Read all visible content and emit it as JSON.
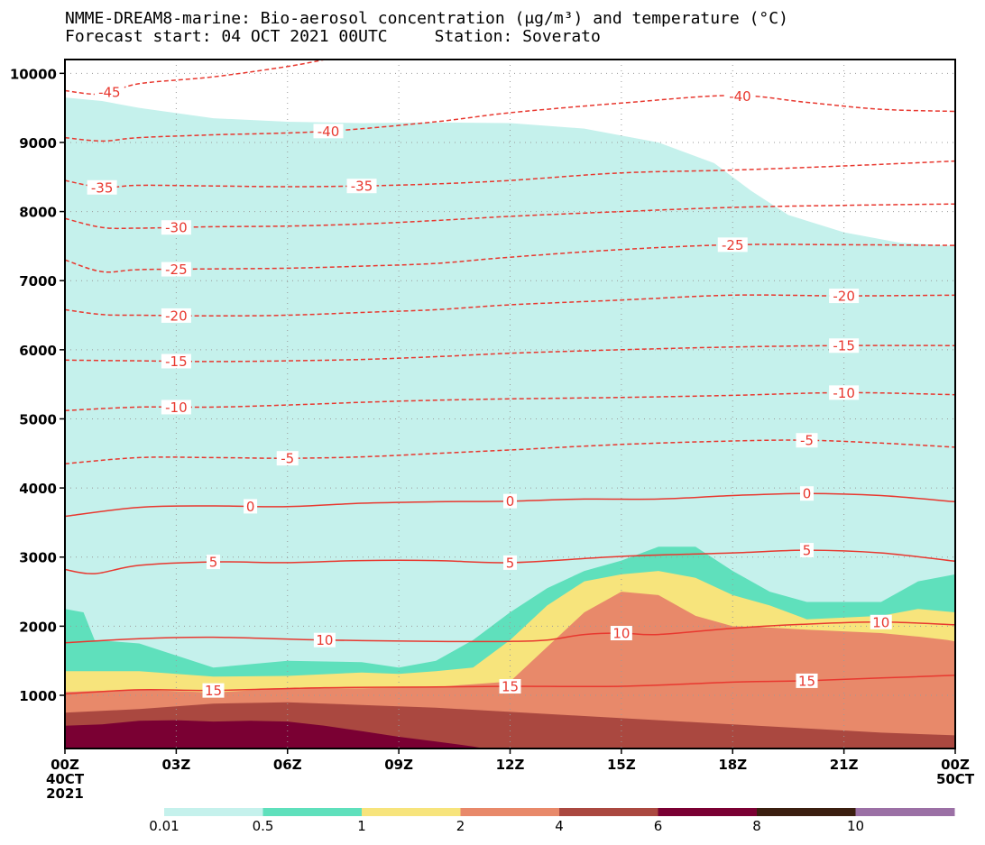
{
  "title": {
    "line1": "NMME-DREAM8-marine: Bio-aerosol concentration (μg/m³) and temperature (°C)",
    "forecast": "Forecast start: 04 OCT 2021 00UTC",
    "station": "Station: Soverato"
  },
  "chart_data": {
    "type": "area",
    "subtype": "time-height contour plot (filled concentration + dashed/solid temperature isolines)",
    "x_unit": "hours since 04 OCT 2021 00UTC",
    "x_range": [
      0,
      24
    ],
    "y_range": [
      230,
      10200
    ],
    "y_ticks": [
      1000,
      2000,
      3000,
      4000,
      5000,
      6000,
      7000,
      8000,
      9000,
      10000
    ],
    "x_ticks": [
      {
        "hour": 0,
        "label": "00Z",
        "sub1": "40CT",
        "sub2": "2021"
      },
      {
        "hour": 3,
        "label": "03Z"
      },
      {
        "hour": 6,
        "label": "06Z"
      },
      {
        "hour": 9,
        "label": "09Z"
      },
      {
        "hour": 12,
        "label": "12Z"
      },
      {
        "hour": 15,
        "label": "15Z"
      },
      {
        "hour": 18,
        "label": "18Z"
      },
      {
        "hour": 21,
        "label": "21Z"
      },
      {
        "hour": 24,
        "label": "00Z",
        "sub1": "50CT"
      }
    ],
    "grid": "dotted",
    "legend": {
      "position": "bottom",
      "colors": [
        "#c5f1ec",
        "#5fe0bc",
        "#f7e47c",
        "#e8896a",
        "#aa4840",
        "#7a0033",
        "#3b1f10",
        "#9b70a5"
      ],
      "labels": [
        "0.01",
        "0.5",
        "1",
        "2",
        "4",
        "6",
        "8",
        "10"
      ]
    },
    "concentration_levels": [
      {
        "min": 0.01,
        "color": "#c5f1ec",
        "top": [
          [
            0,
            9650
          ],
          [
            1,
            9600
          ],
          [
            2,
            9500
          ],
          [
            4,
            9350
          ],
          [
            6,
            9300
          ],
          [
            8,
            9280
          ],
          [
            10,
            9290
          ],
          [
            12,
            9280
          ],
          [
            14,
            9200
          ],
          [
            16,
            9000
          ],
          [
            17.5,
            8700
          ],
          [
            18.5,
            8300
          ],
          [
            19.5,
            7950
          ],
          [
            21,
            7700
          ],
          [
            22.5,
            7550
          ],
          [
            24,
            7500
          ]
        ]
      },
      {
        "min": 0.5,
        "color": "#5fe0bc",
        "top": [
          [
            0,
            2250
          ],
          [
            0.5,
            2200
          ],
          [
            0.8,
            1800
          ],
          [
            2,
            1750
          ],
          [
            4,
            1400
          ],
          [
            6,
            1500
          ],
          [
            8,
            1480
          ],
          [
            9,
            1400
          ],
          [
            10,
            1500
          ],
          [
            11,
            1800
          ],
          [
            12,
            2200
          ],
          [
            13,
            2550
          ],
          [
            14,
            2800
          ],
          [
            15,
            2950
          ],
          [
            16,
            3150
          ],
          [
            17,
            3150
          ],
          [
            18,
            2800
          ],
          [
            19,
            2500
          ],
          [
            20,
            2350
          ],
          [
            22,
            2350
          ],
          [
            23,
            2650
          ],
          [
            24,
            2750
          ]
        ]
      },
      {
        "min": 1,
        "color": "#f7e47c",
        "top": [
          [
            0,
            1350
          ],
          [
            2,
            1350
          ],
          [
            4,
            1270
          ],
          [
            6,
            1280
          ],
          [
            8,
            1330
          ],
          [
            9,
            1310
          ],
          [
            10,
            1350
          ],
          [
            11,
            1400
          ],
          [
            12,
            1800
          ],
          [
            13,
            2300
          ],
          [
            14,
            2650
          ],
          [
            15,
            2750
          ],
          [
            16,
            2800
          ],
          [
            17,
            2700
          ],
          [
            18,
            2450
          ],
          [
            19,
            2300
          ],
          [
            20,
            2100
          ],
          [
            22,
            2150
          ],
          [
            23,
            2250
          ],
          [
            24,
            2200
          ]
        ]
      },
      {
        "min": 2,
        "color": "#e8896a",
        "top": [
          [
            0,
            1050
          ],
          [
            2,
            1080
          ],
          [
            4,
            1040
          ],
          [
            6,
            1100
          ],
          [
            8,
            1100
          ],
          [
            10,
            1120
          ],
          [
            11,
            1160
          ],
          [
            12,
            1200
          ],
          [
            13,
            1700
          ],
          [
            14,
            2200
          ],
          [
            15,
            2500
          ],
          [
            16,
            2450
          ],
          [
            17,
            2150
          ],
          [
            18,
            2000
          ],
          [
            19,
            1980
          ],
          [
            20,
            1950
          ],
          [
            22,
            1900
          ],
          [
            23,
            1850
          ],
          [
            23.8,
            1800
          ],
          [
            24,
            1780
          ]
        ]
      },
      {
        "min": 4,
        "color": "#aa4840",
        "top": [
          [
            0,
            750
          ],
          [
            2,
            800
          ],
          [
            4,
            880
          ],
          [
            6,
            900
          ],
          [
            8,
            860
          ],
          [
            10,
            820
          ],
          [
            12,
            760
          ],
          [
            14,
            700
          ],
          [
            16,
            640
          ],
          [
            18,
            580
          ],
          [
            20,
            520
          ],
          [
            22,
            460
          ],
          [
            24,
            420
          ]
        ]
      },
      {
        "min": 6,
        "color": "#7a0033",
        "top": [
          [
            0,
            560
          ],
          [
            1,
            580
          ],
          [
            2,
            630
          ],
          [
            3,
            640
          ],
          [
            4,
            620
          ],
          [
            5,
            630
          ],
          [
            6,
            620
          ],
          [
            7,
            560
          ],
          [
            8,
            480
          ],
          [
            9,
            400
          ],
          [
            10,
            330
          ],
          [
            11,
            260
          ],
          [
            11.3,
            230
          ]
        ]
      }
    ],
    "temperature_isolines": [
      {
        "label": "-45",
        "dashed": true,
        "points": [
          [
            0,
            9750
          ],
          [
            1,
            9700
          ],
          [
            2,
            9850
          ],
          [
            4,
            9950
          ],
          [
            6,
            10100
          ],
          [
            7,
            10200
          ]
        ],
        "label_at": [
          1.2
        ]
      },
      {
        "label": "-40",
        "dashed": true,
        "points": [
          [
            0,
            9070
          ],
          [
            1,
            9020
          ],
          [
            2,
            9070
          ],
          [
            4,
            9110
          ],
          [
            7,
            9160
          ],
          [
            10,
            9300
          ],
          [
            12,
            9430
          ],
          [
            15,
            9570
          ],
          [
            18,
            9680
          ],
          [
            20,
            9580
          ],
          [
            22,
            9480
          ],
          [
            24,
            9450
          ]
        ],
        "label_at": [
          7.1,
          18.2
        ]
      },
      {
        "label": "-35",
        "dashed": true,
        "points": [
          [
            0,
            8450
          ],
          [
            1,
            8350
          ],
          [
            2,
            8380
          ],
          [
            4,
            8370
          ],
          [
            6,
            8360
          ],
          [
            8,
            8370
          ],
          [
            10,
            8400
          ],
          [
            12,
            8450
          ],
          [
            15,
            8560
          ],
          [
            18,
            8600
          ],
          [
            21,
            8660
          ],
          [
            24,
            8730
          ]
        ],
        "label_at": [
          1.0,
          8.0
        ]
      },
      {
        "label": "-30",
        "dashed": true,
        "points": [
          [
            0,
            7900
          ],
          [
            1,
            7770
          ],
          [
            2,
            7760
          ],
          [
            4,
            7780
          ],
          [
            6,
            7790
          ],
          [
            8,
            7820
          ],
          [
            10,
            7870
          ],
          [
            12,
            7930
          ],
          [
            15,
            8000
          ],
          [
            18,
            8060
          ],
          [
            21,
            8090
          ],
          [
            24,
            8110
          ]
        ],
        "label_at": [
          3.0
        ]
      },
      {
        "label": "-25",
        "dashed": true,
        "points": [
          [
            0,
            7300
          ],
          [
            1,
            7130
          ],
          [
            2,
            7160
          ],
          [
            4,
            7170
          ],
          [
            6,
            7180
          ],
          [
            8,
            7210
          ],
          [
            10,
            7250
          ],
          [
            12,
            7340
          ],
          [
            15,
            7450
          ],
          [
            18,
            7520
          ],
          [
            21,
            7520
          ],
          [
            24,
            7510
          ]
        ],
        "label_at": [
          3.0,
          18.0
        ]
      },
      {
        "label": "-20",
        "dashed": true,
        "points": [
          [
            0,
            6580
          ],
          [
            1,
            6510
          ],
          [
            2,
            6500
          ],
          [
            4,
            6490
          ],
          [
            6,
            6500
          ],
          [
            8,
            6540
          ],
          [
            10,
            6580
          ],
          [
            12,
            6650
          ],
          [
            15,
            6720
          ],
          [
            18,
            6790
          ],
          [
            21,
            6780
          ],
          [
            24,
            6790
          ]
        ],
        "label_at": [
          3.0,
          21.0
        ]
      },
      {
        "label": "-15",
        "dashed": true,
        "points": [
          [
            0,
            5850
          ],
          [
            2,
            5840
          ],
          [
            4,
            5830
          ],
          [
            6,
            5840
          ],
          [
            8,
            5860
          ],
          [
            10,
            5900
          ],
          [
            12,
            5950
          ],
          [
            15,
            6000
          ],
          [
            18,
            6040
          ],
          [
            21,
            6060
          ],
          [
            24,
            6060
          ]
        ],
        "label_at": [
          3.0,
          21.0
        ]
      },
      {
        "label": "-10",
        "dashed": true,
        "points": [
          [
            0,
            5120
          ],
          [
            2,
            5170
          ],
          [
            4,
            5170
          ],
          [
            6,
            5200
          ],
          [
            8,
            5240
          ],
          [
            10,
            5270
          ],
          [
            12,
            5290
          ],
          [
            15,
            5310
          ],
          [
            18,
            5340
          ],
          [
            21,
            5380
          ],
          [
            24,
            5350
          ]
        ],
        "label_at": [
          3.0,
          21.0
        ]
      },
      {
        "label": "-5",
        "dashed": true,
        "points": [
          [
            0,
            4350
          ],
          [
            2,
            4440
          ],
          [
            4,
            4440
          ],
          [
            6,
            4430
          ],
          [
            8,
            4450
          ],
          [
            10,
            4500
          ],
          [
            12,
            4550
          ],
          [
            15,
            4630
          ],
          [
            18,
            4680
          ],
          [
            20,
            4690
          ],
          [
            22,
            4650
          ],
          [
            24,
            4590
          ]
        ],
        "label_at": [
          6.0,
          20.0
        ]
      },
      {
        "label": "0",
        "dashed": false,
        "points": [
          [
            0,
            3590
          ],
          [
            2,
            3720
          ],
          [
            4,
            3740
          ],
          [
            6,
            3730
          ],
          [
            8,
            3780
          ],
          [
            10,
            3800
          ],
          [
            12,
            3810
          ],
          [
            14,
            3840
          ],
          [
            16,
            3840
          ],
          [
            18,
            3890
          ],
          [
            20,
            3920
          ],
          [
            22,
            3890
          ],
          [
            24,
            3800
          ]
        ],
        "label_at": [
          5.0,
          12.0,
          20.0
        ]
      },
      {
        "label": "5",
        "dashed": false,
        "points": [
          [
            0,
            2820
          ],
          [
            0.8,
            2760
          ],
          [
            2,
            2880
          ],
          [
            4,
            2930
          ],
          [
            6,
            2920
          ],
          [
            8,
            2950
          ],
          [
            10,
            2950
          ],
          [
            12,
            2920
          ],
          [
            15,
            3010
          ],
          [
            18,
            3060
          ],
          [
            20,
            3100
          ],
          [
            22,
            3060
          ],
          [
            24,
            2940
          ]
        ],
        "label_at": [
          4.0,
          12.0,
          20.0
        ]
      },
      {
        "label": "10",
        "dashed": false,
        "points": [
          [
            0,
            1760
          ],
          [
            2,
            1820
          ],
          [
            4,
            1840
          ],
          [
            7,
            1800
          ],
          [
            10,
            1780
          ],
          [
            12,
            1780
          ],
          [
            13,
            1800
          ],
          [
            14,
            1880
          ],
          [
            15,
            1900
          ],
          [
            16,
            1880
          ],
          [
            18,
            1970
          ],
          [
            20,
            2030
          ],
          [
            22,
            2060
          ],
          [
            24,
            2020
          ]
        ],
        "label_at": [
          7.0,
          15.0,
          22.0
        ]
      },
      {
        "label": "15",
        "dashed": false,
        "points": [
          [
            0,
            1020
          ],
          [
            2,
            1080
          ],
          [
            4,
            1070
          ],
          [
            7,
            1110
          ],
          [
            10,
            1120
          ],
          [
            12,
            1130
          ],
          [
            15,
            1130
          ],
          [
            18,
            1190
          ],
          [
            20,
            1210
          ],
          [
            22,
            1250
          ],
          [
            24,
            1290
          ]
        ],
        "label_at": [
          4.0,
          12.0,
          20.0
        ]
      }
    ]
  }
}
